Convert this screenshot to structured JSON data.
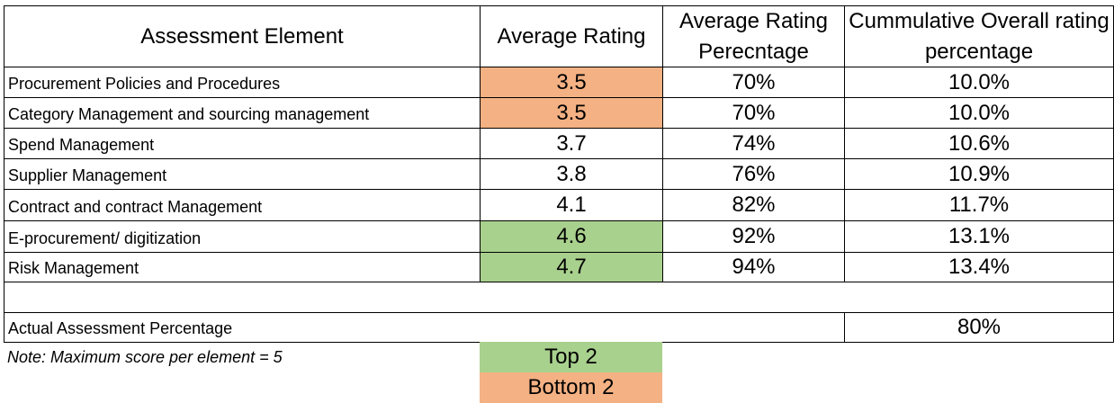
{
  "table": {
    "header": [
      "Assessment Element",
      "Average Rating",
      "Average Rating Perecntage",
      "Cummulative Overall rating percentage"
    ],
    "rows": [
      [
        "Procurement Policies and Procedures",
        "3.5",
        "70%",
        "10.0%"
      ],
      [
        "Category Management and sourcing management",
        "3.5",
        "70%",
        "10.0%"
      ],
      [
        "Spend Management",
        "3.7",
        "74%",
        "10.6%"
      ],
      [
        "Supplier Management",
        "3.8",
        "76%",
        "10.9%"
      ],
      [
        "Contract and contract Management",
        "4.1",
        "82%",
        "11.7%"
      ],
      [
        "E-procurement/ digitization",
        "4.6",
        "92%",
        "13.1%"
      ],
      [
        "Risk Management",
        "4.7",
        "94%",
        "13.4%"
      ]
    ],
    "summary": {
      "label": "Actual Assessment Percentage",
      "value": "80%"
    }
  },
  "note": "Note: Maximum score per element = 5",
  "legend": [
    {
      "label": "Top 2",
      "color": "#a9d18e"
    },
    {
      "label": "Bottom 2",
      "color": "#f4b183"
    }
  ]
}
